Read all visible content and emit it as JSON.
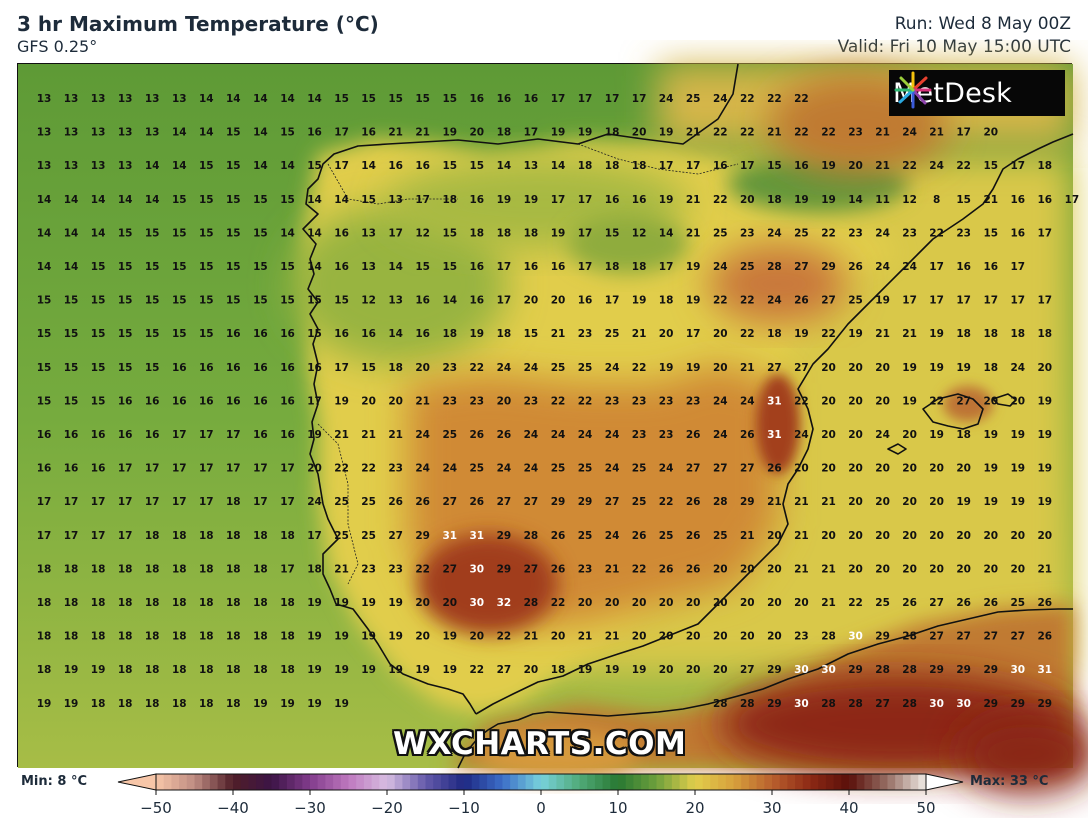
{
  "header": {
    "title": "3 hr Maximum Temperature (°C)",
    "model": "GFS 0.25°",
    "run": "Run: Wed 8 May 00Z",
    "valid": "Valid: Fri 10 May 15:00 UTC"
  },
  "brand": {
    "logo_text": "MetDesk",
    "watermark": "WXCHARTS.COM"
  },
  "legend": {
    "min_label": "Min: 8 °C",
    "max_label": "Max: 33 °C",
    "ticks": [
      "−50",
      "−40",
      "−30",
      "−20",
      "−10",
      "0",
      "10",
      "20",
      "30",
      "40",
      "50"
    ],
    "tick_values": [
      -50,
      -40,
      -30,
      -20,
      -10,
      0,
      10,
      20,
      30,
      40,
      50
    ]
  },
  "grid": {
    "rows": [
      [
        13,
        13,
        13,
        13,
        13,
        13,
        14,
        14,
        14,
        14,
        14,
        15,
        15,
        15,
        15,
        15,
        16,
        16,
        16,
        17,
        17,
        17,
        17,
        24,
        25,
        24,
        22,
        22,
        22,
        null,
        null,
        null,
        null,
        null,
        null,
        null,
        null,
        null
      ],
      [
        13,
        13,
        13,
        13,
        13,
        14,
        14,
        15,
        14,
        15,
        16,
        17,
        16,
        21,
        21,
        19,
        20,
        18,
        17,
        19,
        19,
        18,
        20,
        19,
        21,
        22,
        22,
        21,
        22,
        22,
        23,
        21,
        24,
        21,
        17,
        20,
        null,
        null
      ],
      [
        13,
        13,
        13,
        13,
        14,
        14,
        15,
        15,
        14,
        14,
        15,
        17,
        14,
        16,
        16,
        15,
        15,
        14,
        13,
        14,
        18,
        18,
        18,
        17,
        17,
        16,
        17,
        15,
        16,
        19,
        20,
        21,
        22,
        24,
        22,
        15,
        17,
        18
      ],
      [
        14,
        14,
        14,
        14,
        14,
        15,
        15,
        15,
        15,
        15,
        14,
        14,
        15,
        13,
        17,
        18,
        16,
        19,
        19,
        17,
        17,
        16,
        16,
        19,
        21,
        22,
        20,
        18,
        19,
        19,
        14,
        11,
        12,
        8,
        15,
        21,
        16,
        16,
        17
      ],
      [
        14,
        14,
        14,
        15,
        15,
        15,
        15,
        15,
        15,
        14,
        14,
        16,
        13,
        17,
        12,
        15,
        18,
        18,
        18,
        19,
        17,
        15,
        12,
        14,
        21,
        25,
        23,
        24,
        25,
        22,
        23,
        24,
        23,
        22,
        23,
        15,
        16,
        17
      ],
      [
        14,
        14,
        15,
        15,
        15,
        15,
        15,
        15,
        15,
        15,
        14,
        16,
        13,
        14,
        15,
        15,
        16,
        17,
        16,
        16,
        17,
        18,
        18,
        17,
        19,
        24,
        25,
        28,
        27,
        29,
        26,
        24,
        24,
        17,
        16,
        16,
        17
      ],
      [
        15,
        15,
        15,
        15,
        15,
        15,
        15,
        15,
        15,
        15,
        15,
        15,
        12,
        13,
        16,
        14,
        16,
        17,
        20,
        20,
        16,
        17,
        19,
        18,
        19,
        22,
        22,
        24,
        26,
        27,
        25,
        19,
        17,
        17,
        17,
        17,
        17,
        17
      ],
      [
        15,
        15,
        15,
        15,
        15,
        15,
        15,
        16,
        16,
        16,
        15,
        16,
        16,
        14,
        16,
        18,
        19,
        18,
        15,
        21,
        23,
        25,
        21,
        20,
        17,
        20,
        22,
        18,
        19,
        22,
        19,
        21,
        21,
        19,
        18,
        18,
        18,
        18
      ],
      [
        15,
        15,
        15,
        15,
        15,
        16,
        16,
        16,
        16,
        16,
        16,
        17,
        15,
        18,
        20,
        23,
        22,
        24,
        24,
        25,
        25,
        24,
        22,
        19,
        19,
        20,
        21,
        27,
        27,
        20,
        20,
        20,
        19,
        19,
        19,
        18,
        24,
        20
      ],
      [
        15,
        15,
        15,
        16,
        16,
        16,
        16,
        16,
        16,
        16,
        17,
        19,
        20,
        20,
        21,
        23,
        23,
        20,
        23,
        22,
        22,
        23,
        23,
        23,
        23,
        24,
        24,
        31,
        22,
        20,
        20,
        20,
        19,
        22,
        27,
        20,
        20,
        19
      ],
      [
        16,
        16,
        16,
        16,
        16,
        17,
        17,
        17,
        16,
        16,
        19,
        21,
        21,
        21,
        24,
        25,
        26,
        26,
        24,
        24,
        24,
        24,
        23,
        23,
        26,
        24,
        26,
        31,
        24,
        20,
        20,
        24,
        20,
        19,
        18,
        19,
        19,
        19
      ],
      [
        16,
        16,
        16,
        17,
        17,
        17,
        17,
        17,
        17,
        17,
        20,
        22,
        22,
        23,
        24,
        24,
        25,
        24,
        24,
        25,
        25,
        24,
        25,
        24,
        27,
        27,
        27,
        26,
        20,
        20,
        20,
        20,
        20,
        20,
        20,
        19,
        19,
        19
      ],
      [
        17,
        17,
        17,
        17,
        17,
        17,
        17,
        18,
        17,
        17,
        24,
        25,
        25,
        26,
        26,
        27,
        26,
        27,
        27,
        29,
        29,
        27,
        25,
        22,
        26,
        28,
        29,
        21,
        21,
        21,
        20,
        20,
        20,
        20,
        19,
        19,
        19,
        19
      ],
      [
        17,
        17,
        17,
        17,
        18,
        18,
        18,
        18,
        18,
        18,
        17,
        25,
        25,
        27,
        29,
        31,
        31,
        29,
        28,
        26,
        25,
        24,
        26,
        25,
        26,
        25,
        21,
        20,
        21,
        20,
        20,
        20,
        20,
        20,
        20,
        20,
        20,
        20
      ],
      [
        18,
        18,
        18,
        18,
        18,
        18,
        18,
        18,
        18,
        17,
        18,
        21,
        23,
        23,
        22,
        27,
        30,
        29,
        27,
        26,
        23,
        21,
        22,
        26,
        26,
        20,
        20,
        20,
        21,
        21,
        20,
        20,
        20,
        20,
        20,
        20,
        20,
        21
      ],
      [
        18,
        18,
        18,
        18,
        18,
        18,
        18,
        18,
        18,
        18,
        19,
        19,
        19,
        19,
        20,
        20,
        30,
        32,
        28,
        22,
        20,
        20,
        20,
        20,
        20,
        20,
        20,
        20,
        20,
        21,
        22,
        25,
        26,
        27,
        26,
        26,
        25,
        26
      ],
      [
        18,
        18,
        18,
        18,
        18,
        18,
        18,
        18,
        18,
        18,
        19,
        19,
        19,
        19,
        20,
        19,
        20,
        22,
        21,
        20,
        21,
        21,
        20,
        20,
        20,
        20,
        20,
        20,
        23,
        28,
        30,
        29,
        28,
        27,
        27,
        27,
        27,
        26
      ],
      [
        18,
        19,
        19,
        18,
        18,
        18,
        18,
        18,
        18,
        18,
        19,
        19,
        19,
        19,
        19,
        19,
        22,
        27,
        20,
        18,
        19,
        19,
        19,
        20,
        20,
        20,
        27,
        29,
        30,
        30,
        29,
        28,
        28,
        29,
        29,
        29,
        30,
        31
      ],
      [
        19,
        19,
        18,
        18,
        18,
        18,
        18,
        18,
        19,
        19,
        19,
        19,
        null,
        null,
        null,
        null,
        null,
        null,
        null,
        null,
        null,
        null,
        null,
        null,
        null,
        28,
        28,
        29,
        30,
        28,
        28,
        27,
        28,
        30,
        30,
        29,
        29,
        29
      ]
    ]
  },
  "colors": {
    "sea_green": "#6fa83b",
    "land_yellow": "#e2cf4a",
    "hot_orange": "#c9772f",
    "hot_red": "#8e2512",
    "coast": "#111111"
  }
}
